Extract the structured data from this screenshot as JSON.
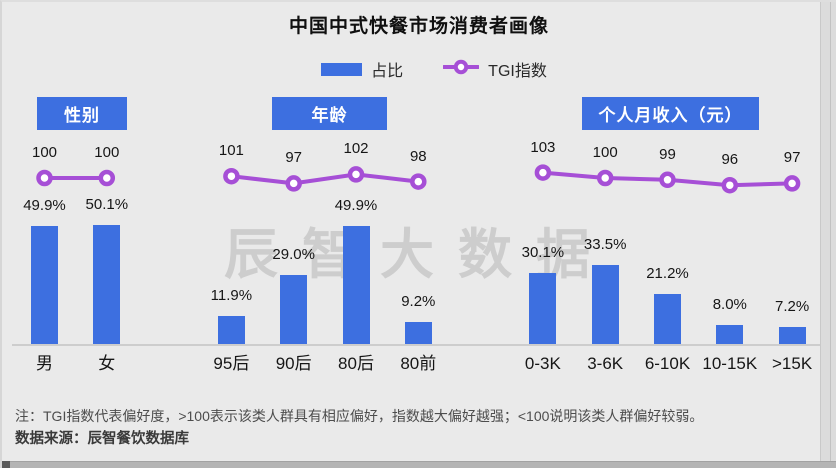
{
  "title": "中国中式快餐市场消费者画像",
  "legend": {
    "bar_label": "占比",
    "line_label": "TGI指数"
  },
  "watermark": "辰智大数据",
  "notes": {
    "note": "注：TGI指数代表偏好度，>100表示该类人群具有相应偏好，指数越大偏好越强；<100说明该类人群偏好较弱。",
    "source": "数据来源：辰智餐饮数据库"
  },
  "colors": {
    "bar": "#3d6fe0",
    "line": "#a64fd6",
    "axis": "#cdcdcd",
    "header_bg": "#3d6fe0",
    "background": "#eaeaea"
  },
  "chart_data": {
    "type": "bar",
    "combo": "grouped bar + TGI line overlay",
    "legend_entries": [
      "占比",
      "TGI指数"
    ],
    "value_unit": "%",
    "grid": false,
    "groups": [
      {
        "label": "性别",
        "categories": [
          "男",
          "女"
        ],
        "share_pct": [
          49.9,
          50.1
        ],
        "tgi": [
          100,
          100
        ]
      },
      {
        "label": "年龄",
        "categories": [
          "95后",
          "90后",
          "80后",
          "80前"
        ],
        "share_pct": [
          11.9,
          29.0,
          49.9,
          9.2
        ],
        "tgi": [
          101,
          97,
          102,
          98
        ]
      },
      {
        "label": "个人月收入（元）",
        "categories": [
          "0-3K",
          "3-6K",
          "6-10K",
          "10-15K",
          ">15K"
        ],
        "share_pct": [
          30.1,
          33.5,
          21.2,
          8.0,
          7.2
        ],
        "tgi": [
          103,
          100,
          99,
          96,
          97
        ]
      }
    ]
  }
}
